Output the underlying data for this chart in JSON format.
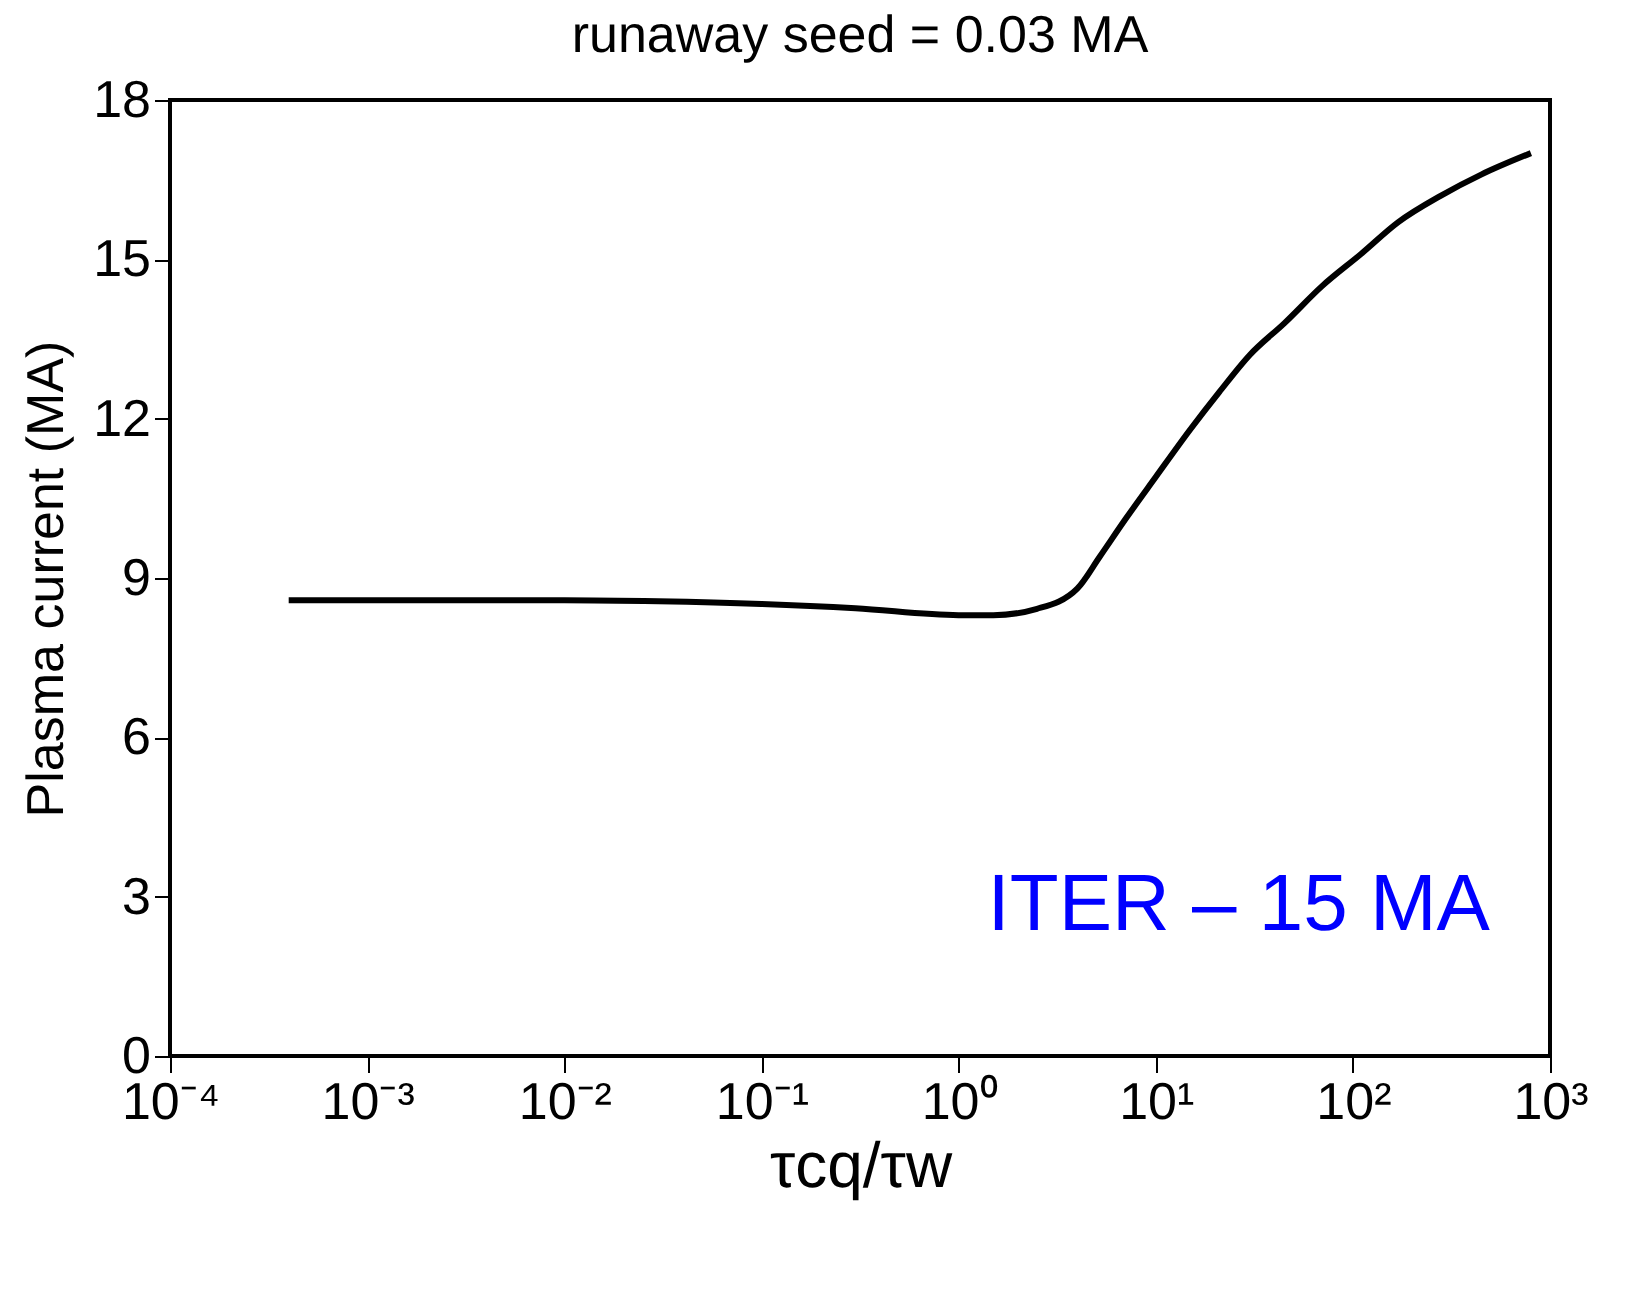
{
  "chart_data": {
    "type": "line",
    "title": "runaway seed = 0.03 MA",
    "xlabel": "τcq/τw",
    "ylabel": "Plasma current (MA)",
    "x": [
      0.0004,
      0.001,
      0.01,
      0.03,
      0.1,
      0.3,
      1,
      1.5,
      2.5,
      4,
      5.2,
      7,
      10,
      15,
      21,
      30,
      45,
      70,
      110,
      170,
      280,
      450,
      800
    ],
    "series": [
      {
        "color": "#000000",
        "values": [
          8.58,
          8.58,
          8.58,
          8.56,
          8.51,
          8.43,
          8.3,
          8.3,
          8.42,
          8.8,
          9.4,
          10.1,
          10.9,
          11.8,
          12.5,
          13.2,
          13.8,
          14.5,
          15.1,
          15.7,
          16.2,
          16.6,
          17.0
        ]
      }
    ],
    "log": "x",
    "xlim": [
      0.0001,
      1000
    ],
    "xticks": [
      {
        "value": 0.0001,
        "label": "10⁻⁴"
      },
      {
        "value": 0.001,
        "label": "10⁻³"
      },
      {
        "value": 0.01,
        "label": "10⁻²"
      },
      {
        "value": 0.1,
        "label": "10⁻¹"
      },
      {
        "value": 1,
        "label": "10⁰"
      },
      {
        "value": 10,
        "label": "10¹"
      },
      {
        "value": 100,
        "label": "10²"
      },
      {
        "value": 1000,
        "label": "10³"
      }
    ],
    "ylim": [
      0,
      18
    ],
    "yticks": [
      0,
      3,
      6,
      9,
      12,
      15,
      18
    ],
    "annotations": [
      "ITER – 15 MA"
    ],
    "grid": false,
    "marker": "none",
    "line_style": "solid"
  }
}
